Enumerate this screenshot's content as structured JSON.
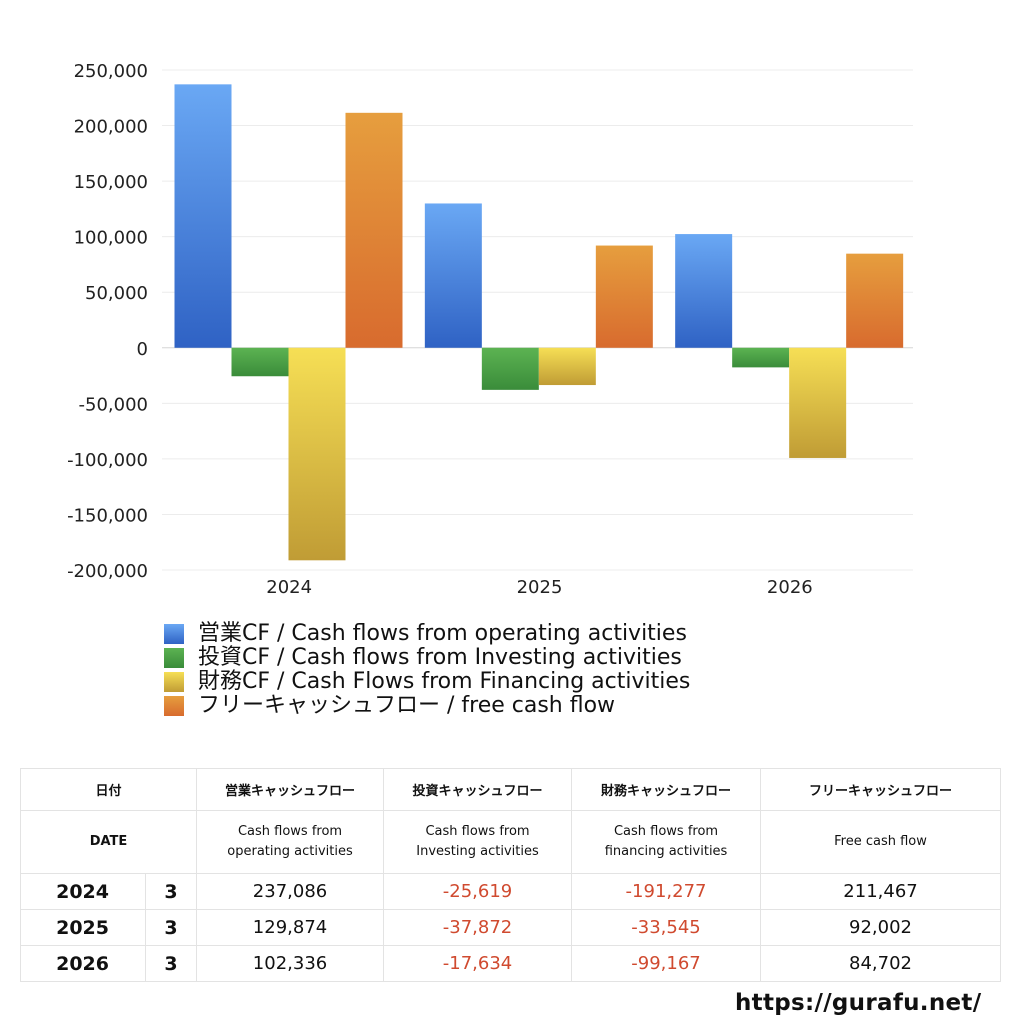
{
  "chart_data": {
    "type": "bar",
    "categories": [
      "2024",
      "2025",
      "2026"
    ],
    "series": [
      {
        "name": "営業CF / Cash flows from operating activities",
        "values": [
          237086,
          129874,
          102336
        ],
        "color": "#3a78d6"
      },
      {
        "name": "投資CF / Cash flows from Investing activities",
        "values": [
          -25619,
          -37872,
          -17634
        ],
        "color": "#3f9a3f"
      },
      {
        "name": "財務CF / Cash Flows from Financing activities",
        "values": [
          -191277,
          -33545,
          -99167
        ],
        "color": "#e2c945"
      },
      {
        "name": "フリーキャッシュフロー / free cash flow",
        "values": [
          211467,
          92002,
          84702
        ],
        "color": "#e2893a"
      }
    ],
    "ylim": [
      -200000,
      250000
    ],
    "yticks": [
      250000,
      200000,
      150000,
      100000,
      50000,
      0,
      -50000,
      -100000,
      -150000,
      -200000
    ],
    "ytick_labels": [
      "250,000",
      "200,000",
      "150,000",
      "100,000",
      "50,000",
      "0",
      "-50,000",
      "-100,000",
      "-150,000",
      "-200,000"
    ],
    "grid": true,
    "legend": "bottom"
  },
  "table": {
    "header_jp": [
      "日付",
      "営業キャッシュフロー",
      "投資キャッシュフロー",
      "財務キャッシュフロー",
      "フリーキャッシュフロー"
    ],
    "header_en": {
      "date": "DATE",
      "operating": [
        "Cash flows from",
        "operating activities"
      ],
      "investing": [
        "Cash flows from",
        "Investing activities"
      ],
      "financing": [
        "Cash flows from",
        "financing activities"
      ],
      "free": "Free cash flow"
    },
    "rows": [
      {
        "year": "2024",
        "month": "3",
        "operating": "237,086",
        "investing": "-25,619",
        "financing": "-191,277",
        "free": "211,467"
      },
      {
        "year": "2025",
        "month": "3",
        "operating": "129,874",
        "investing": "-37,872",
        "financing": "-33,545",
        "free": "92,002"
      },
      {
        "year": "2026",
        "month": "3",
        "operating": "102,336",
        "investing": "-17,634",
        "financing": "-99,167",
        "free": "84,702"
      }
    ]
  },
  "site_url": "https://gurafu.net/"
}
